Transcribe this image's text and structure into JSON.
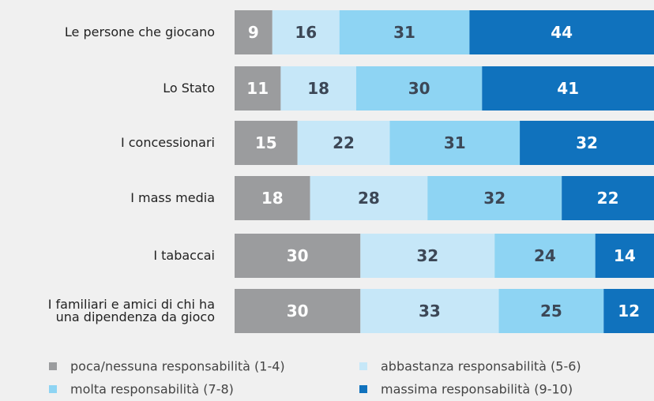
{
  "chart_data": {
    "type": "stacked-bar-horizontal",
    "categories": [
      "Le persone che giocano",
      "Lo Stato",
      "I concessionari",
      "I mass media",
      "I tabaccai",
      "I familiari e amici di chi ha\nuna dipendenza da gioco"
    ],
    "xlim": [
      0,
      100
    ],
    "series": [
      {
        "name": "poca/nessuna responsabilità (1-4)",
        "color": "#9b9c9e",
        "label_color": "#ffffff",
        "values": [
          9,
          11,
          15,
          18,
          30,
          30
        ]
      },
      {
        "name": "abbastanza responsabilità (5-6)",
        "color": "#c6e7f8",
        "label_color": "#3c4756",
        "values": [
          16,
          18,
          22,
          28,
          32,
          33
        ]
      },
      {
        "name": "molta responsabilità (7-8)",
        "color": "#8ed4f3",
        "label_color": "#3c4756",
        "values": [
          31,
          30,
          31,
          32,
          24,
          25
        ]
      },
      {
        "name": "massima responsabilità (9-10)",
        "color": "#1072bd",
        "label_color": "#ffffff",
        "values": [
          44,
          41,
          32,
          22,
          14,
          12
        ]
      }
    ]
  }
}
